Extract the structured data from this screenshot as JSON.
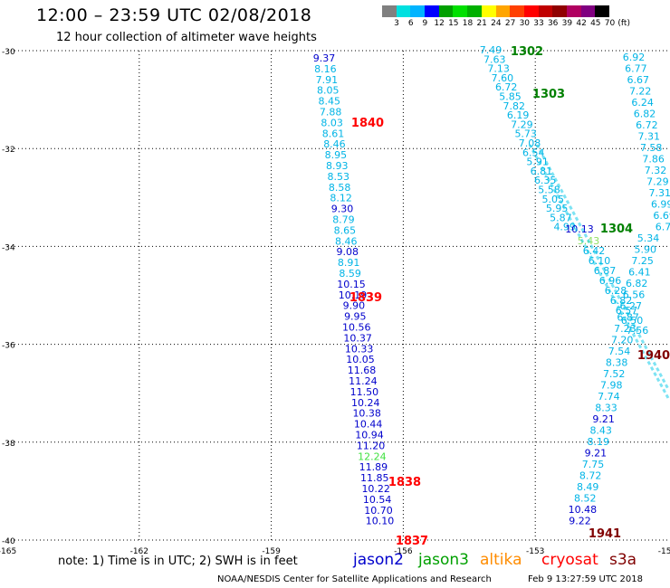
{
  "header": {
    "title": "12:00 – 23:59 UTC 02/08/2018",
    "subtitle": "12 hour collection of altimeter wave heights"
  },
  "colorbar": {
    "colors": [
      "#808080",
      "#00e0e0",
      "#00b4ff",
      "#0000ff",
      "#00a000",
      "#00e000",
      "#00b000",
      "#ffff00",
      "#ffa500",
      "#ff4000",
      "#ff0000",
      "#c00000",
      "#900000",
      "#b00060",
      "#800080",
      "#000000"
    ],
    "labels": [
      "3",
      "6",
      "9",
      "12",
      "15",
      "18",
      "21",
      "24",
      "27",
      "30",
      "33",
      "36",
      "39",
      "42",
      "45",
      "70",
      "(ft)"
    ]
  },
  "axes": {
    "lat_labels": [
      "-30",
      "-32",
      "-34",
      "-36",
      "-38",
      "-40"
    ],
    "lon_labels": [
      "-165",
      "-162",
      "-159",
      "-156",
      "-153",
      "-150"
    ]
  },
  "tracks": [
    {
      "name": "jason2-pass-a",
      "color": "#0000cc",
      "lon_start": -158.4,
      "lon_end": -157.5,
      "values": [
        "9.37",
        "8.16",
        "7.91",
        "8.05",
        "8.45",
        "7.88",
        "8.03",
        "8.61",
        "8.46",
        "8.95",
        "8.93",
        "8.53",
        "8.58",
        "8.12",
        "9.30",
        "8.79",
        "8.65",
        "8.46",
        "9.08",
        "8.91",
        "8.59",
        "10.15",
        "10.19",
        "9.90",
        "9.95",
        "10.56",
        "10.37",
        "10.33",
        "10.05",
        "11.68",
        "11.24",
        "11.50",
        "10.24",
        "10.38",
        "10.44",
        "10.94",
        "11.20",
        "12.24",
        "11.89",
        "11.85",
        "10.22",
        "10.54",
        "10.70",
        "10.10"
      ],
      "colors": [
        "b",
        "c",
        "c",
        "c",
        "c",
        "c",
        "c",
        "c",
        "c",
        "c",
        "c",
        "c",
        "c",
        "c",
        "b",
        "c",
        "c",
        "c",
        "b",
        "c",
        "c",
        "b",
        "b",
        "b",
        "b",
        "b",
        "b",
        "b",
        "b",
        "b",
        "b",
        "b",
        "b",
        "b",
        "b",
        "b",
        "b",
        "g",
        "b",
        "b",
        "b",
        "b",
        "b",
        "b"
      ]
    }
  ],
  "time_labels": [
    {
      "text": "1840",
      "color": "#ff0000"
    },
    {
      "text": "1839",
      "color": "#ff0000"
    },
    {
      "text": "1838",
      "color": "#ff0000"
    },
    {
      "text": "1837",
      "color": "#ff0000"
    },
    {
      "text": "1302",
      "color": "#008000"
    },
    {
      "text": "1303",
      "color": "#008000"
    },
    {
      "text": "1304",
      "color": "#008000"
    },
    {
      "text": "1940",
      "color": "#800000"
    },
    {
      "text": "1941",
      "color": "#800000"
    }
  ],
  "diag_track_a": [
    "7.49",
    "7.63",
    "7.13",
    "7.60",
    "6.72",
    "5.85",
    "7.82",
    "6.19",
    "7.29",
    "5.73",
    "7.08",
    "6.54",
    "5.91",
    "6.81",
    "6.35",
    "5.58",
    "5.05",
    "5.95",
    "5.87",
    "4.99"
  ],
  "diag_track_a_end": "10.13",
  "diag_track_b": [
    "6.92",
    "6.77",
    "6.67",
    "7.22",
    "6.24",
    "6.82",
    "6.72",
    "7.31",
    "7.58",
    "7.86",
    "7.32",
    "7.29",
    "7.31",
    "6.99",
    "6.69",
    "6.75",
    "5.34",
    "5.90",
    "7.25",
    "6.41",
    "6.82",
    "6.56",
    "6.27",
    "6.87",
    "7.23",
    "7.20",
    "7.54",
    "8.38",
    "7.52",
    "7.98",
    "7.74",
    "8.33",
    "9.21",
    "8.43",
    "8.19",
    "9.21",
    "7.75",
    "8.72",
    "8.49",
    "8.52",
    "10.48",
    "9.22"
  ],
  "diag_track_c": [
    "5.43",
    "6.42",
    "6.10",
    "6.87",
    "6.96",
    "6.28",
    "6.82",
    "6.57",
    "6.50",
    "7.56"
  ],
  "footer": {
    "note": "note:  1) Time is in UTC;  2) SWH is in feet",
    "satellites": [
      {
        "name": "jason2",
        "color": "#0000cc"
      },
      {
        "name": "jason3",
        "color": "#00a000"
      },
      {
        "name": "altika",
        "color": "#ff8c00"
      },
      {
        "name": "cryosat",
        "color": "#ff0000"
      },
      {
        "name": "s3a",
        "color": "#800000"
      }
    ],
    "credit": "NOAA/NESDIS Center for Satellite Applications and Research",
    "timestamp": "Feb  9 13:27:59 UTC 2018"
  }
}
